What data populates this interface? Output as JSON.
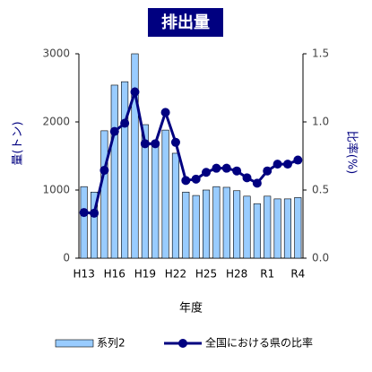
{
  "chart_data": {
    "type": "bar",
    "title": "排出量",
    "xlabel": "年度",
    "ylabel": "量(トン)",
    "y2label": "比率(%)",
    "categories": [
      "H13",
      null,
      null,
      "H16",
      null,
      null,
      "H19",
      null,
      null,
      "H22",
      null,
      null,
      "H25",
      null,
      null,
      "H28",
      null,
      null,
      "R1",
      null,
      null,
      "R4"
    ],
    "series": [
      {
        "name": "系列2",
        "type": "bar",
        "color": "#99ccff",
        "values": [
          1050,
          970,
          1870,
          2540,
          2590,
          3000,
          1960,
          1710,
          1880,
          1540,
          970,
          920,
          1000,
          1050,
          1040,
          990,
          910,
          800,
          910,
          870,
          870,
          890
        ]
      },
      {
        "name": "全国における県の比率",
        "type": "line",
        "axis": "y2",
        "color": "#000080",
        "values": [
          0.335,
          0.33,
          0.645,
          0.93,
          0.99,
          1.22,
          0.84,
          0.84,
          1.07,
          0.85,
          0.57,
          0.58,
          0.63,
          0.66,
          0.66,
          0.64,
          0.59,
          0.55,
          0.64,
          0.69,
          0.69,
          0.72
        ]
      }
    ],
    "ylim": [
      0,
      3000
    ],
    "yticks": [
      0,
      1000,
      2000,
      3000
    ],
    "y2lim": [
      0,
      1.5
    ],
    "y2ticks": [
      {
        "value": 0,
        "label": "0.0"
      },
      0.5,
      {
        "value": 1,
        "label": "1.0"
      },
      1.5
    ],
    "grid": false,
    "legend": "bottom"
  }
}
